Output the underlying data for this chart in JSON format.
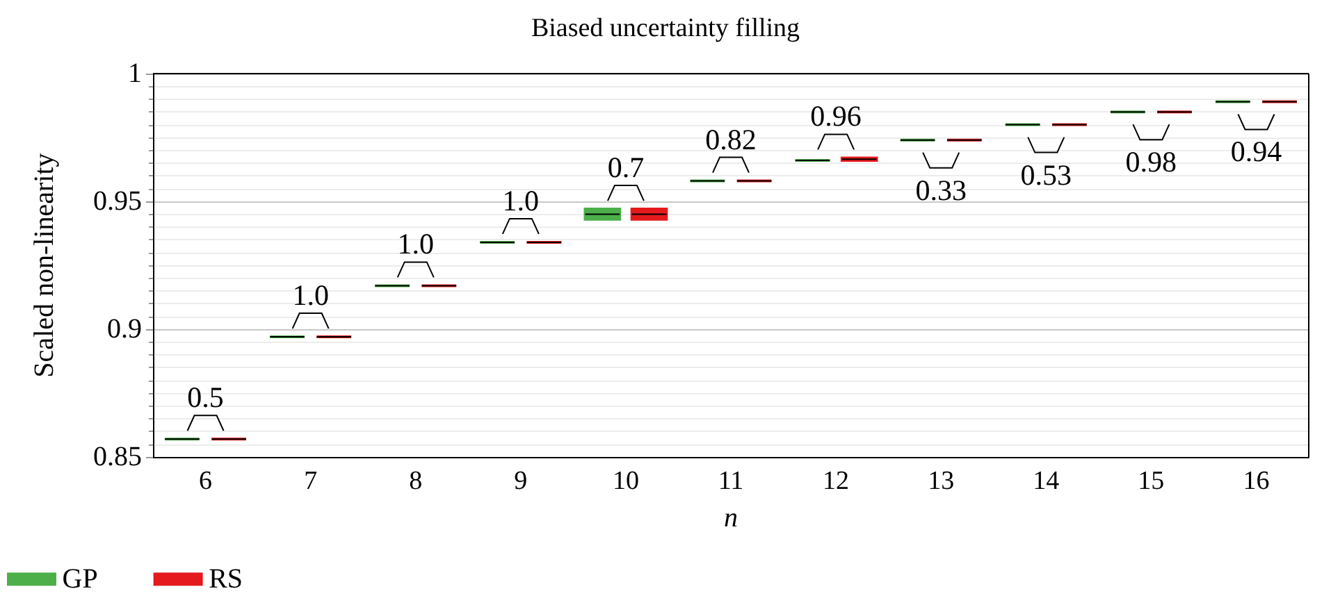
{
  "chart_data": {
    "type": "box",
    "title": "Biased uncertainty filling",
    "xlabel": "n",
    "ylabel": "Scaled non-linearity",
    "categories": [
      "6",
      "7",
      "8",
      "9",
      "10",
      "11",
      "12",
      "13",
      "14",
      "15",
      "16"
    ],
    "series": [
      {
        "name": "GP",
        "color": "#4daf4a",
        "boxes": [
          {
            "low": 0.857,
            "q1": 0.857,
            "median": 0.857,
            "q3": 0.857,
            "high": 0.857
          },
          {
            "low": 0.897,
            "q1": 0.897,
            "median": 0.897,
            "q3": 0.897,
            "high": 0.897
          },
          {
            "low": 0.917,
            "q1": 0.917,
            "median": 0.917,
            "q3": 0.917,
            "high": 0.917
          },
          {
            "low": 0.934,
            "q1": 0.934,
            "median": 0.934,
            "q3": 0.934,
            "high": 0.934
          },
          {
            "low": 0.943,
            "q1": 0.943,
            "median": 0.945,
            "q3": 0.947,
            "high": 0.947
          },
          {
            "low": 0.958,
            "q1": 0.958,
            "median": 0.958,
            "q3": 0.958,
            "high": 0.958
          },
          {
            "low": 0.966,
            "q1": 0.966,
            "median": 0.966,
            "q3": 0.966,
            "high": 0.966
          },
          {
            "low": 0.974,
            "q1": 0.974,
            "median": 0.974,
            "q3": 0.974,
            "high": 0.974
          },
          {
            "low": 0.98,
            "q1": 0.98,
            "median": 0.98,
            "q3": 0.98,
            "high": 0.98
          },
          {
            "low": 0.985,
            "q1": 0.985,
            "median": 0.985,
            "q3": 0.985,
            "high": 0.985
          },
          {
            "low": 0.989,
            "q1": 0.989,
            "median": 0.989,
            "q3": 0.989,
            "high": 0.989
          }
        ]
      },
      {
        "name": "RS",
        "color": "#e41a1c",
        "boxes": [
          {
            "low": 0.857,
            "q1": 0.857,
            "median": 0.857,
            "q3": 0.857,
            "high": 0.857
          },
          {
            "low": 0.897,
            "q1": 0.897,
            "median": 0.897,
            "q3": 0.897,
            "high": 0.897
          },
          {
            "low": 0.917,
            "q1": 0.917,
            "median": 0.917,
            "q3": 0.917,
            "high": 0.917
          },
          {
            "low": 0.934,
            "q1": 0.934,
            "median": 0.934,
            "q3": 0.934,
            "high": 0.934
          },
          {
            "low": 0.943,
            "q1": 0.943,
            "median": 0.945,
            "q3": 0.947,
            "high": 0.947
          },
          {
            "low": 0.958,
            "q1": 0.958,
            "median": 0.958,
            "q3": 0.958,
            "high": 0.958
          },
          {
            "low": 0.966,
            "q1": 0.966,
            "median": 0.9665,
            "q3": 0.967,
            "high": 0.967
          },
          {
            "low": 0.974,
            "q1": 0.974,
            "median": 0.974,
            "q3": 0.974,
            "high": 0.974
          },
          {
            "low": 0.98,
            "q1": 0.98,
            "median": 0.98,
            "q3": 0.98,
            "high": 0.98
          },
          {
            "low": 0.985,
            "q1": 0.985,
            "median": 0.985,
            "q3": 0.985,
            "high": 0.985
          },
          {
            "low": 0.989,
            "q1": 0.989,
            "median": 0.989,
            "q3": 0.989,
            "high": 0.989
          }
        ]
      }
    ],
    "ylim": [
      0.85,
      1
    ],
    "yticks": [
      0.85,
      0.9,
      0.95,
      1
    ],
    "grid": "y",
    "legend": "bottom left",
    "annotations": [
      {
        "text": "0.5",
        "x": "6",
        "y": 0.857
      },
      {
        "text": "1.0",
        "x": "7",
        "y": 0.897
      },
      {
        "text": "1.0",
        "x": "8",
        "y": 0.917
      },
      {
        "text": "1.0",
        "x": "9",
        "y": 0.934
      },
      {
        "text": "0.7",
        "x": "10",
        "y": 0.947
      },
      {
        "text": "0.82",
        "x": "11",
        "y": 0.958
      },
      {
        "text": "0.96",
        "x": "12",
        "y": 0.967
      },
      {
        "text": "0.33",
        "x": "13",
        "y": 0.974
      },
      {
        "text": "0.53",
        "x": "14",
        "y": 0.98
      },
      {
        "text": "0.98",
        "x": "15",
        "y": 0.985
      },
      {
        "text": "0.94",
        "x": "16",
        "y": 0.989
      }
    ]
  }
}
